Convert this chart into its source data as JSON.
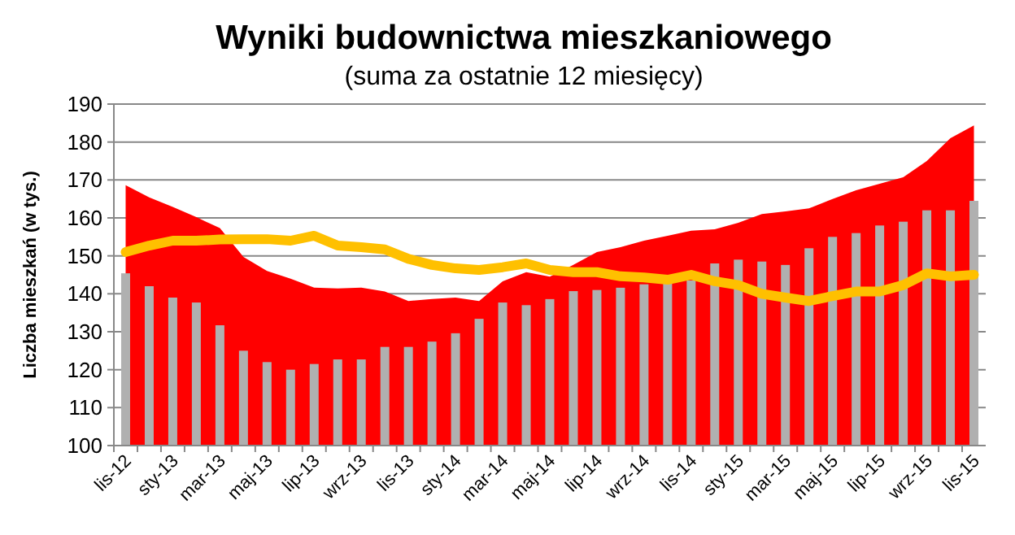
{
  "chart_data": {
    "type": "bar",
    "title": "Wyniki budownictwa mieszkaniowego",
    "subtitle": "(suma za ostatnie 12 miesięcy)",
    "ylabel": "Liczba mieszkań (w tys.)",
    "categories": [
      "lis-12",
      null,
      "sty-13",
      null,
      "mar-13",
      null,
      "maj-13",
      null,
      "lip-13",
      null,
      "wrz-13",
      null,
      "lis-13",
      null,
      "sty-14",
      null,
      "mar-14",
      null,
      "maj-14",
      null,
      "lip-14",
      null,
      "wrz-14",
      null,
      "lis-14",
      null,
      "sty-15",
      null,
      "mar-15",
      null,
      "maj-15",
      null,
      "lip-15",
      null,
      "wrz-15",
      null,
      "lis-15"
    ],
    "series": [
      {
        "type": "area",
        "color": "#ff0000",
        "values": [
          168.6,
          165.4,
          162.9,
          160.2,
          157.3,
          149.7,
          146,
          144,
          141.6,
          141.4,
          141.6,
          140.6,
          138.1,
          138.6,
          139,
          138.1,
          143.3,
          145.7,
          144.5,
          147.6,
          151,
          152.3,
          154,
          155.3,
          156.6,
          157,
          158.7,
          161,
          161.7,
          162.5,
          165,
          167.3,
          169,
          170.7,
          175,
          181,
          184.4
        ]
      },
      {
        "color": "#b0b0b0",
        "values": [
          145.4,
          142,
          139,
          137.7,
          131.7,
          125,
          122,
          120,
          121.5,
          122.7,
          122.7,
          126,
          126,
          127.4,
          129.6,
          133.4,
          137.7,
          137,
          138.6,
          140.7,
          141,
          141.6,
          142.5,
          143,
          143.5,
          148,
          149,
          148.5,
          147.6,
          152,
          155,
          156,
          158,
          159,
          162,
          162,
          164.5
        ]
      },
      {
        "type": "line",
        "color": "#ffc000",
        "values": [
          151,
          152.7,
          154,
          154,
          154.3,
          154.4,
          154.4,
          154,
          155.3,
          152.7,
          152.3,
          151.7,
          149.2,
          147.6,
          146.7,
          146.3,
          147,
          148,
          146.3,
          145.7,
          145.7,
          144.6,
          144.3,
          143.7,
          145,
          143.3,
          142.3,
          140,
          139,
          138.1,
          139.4,
          140.6,
          140.6,
          142.3,
          145.4,
          144.6,
          145
        ]
      }
    ],
    "ylim": [
      100,
      190
    ],
    "yticks": [
      100,
      110,
      120,
      130,
      140,
      150,
      160,
      170,
      180,
      190
    ],
    "grid": "y",
    "marker": "none",
    "line_style": "solid"
  }
}
